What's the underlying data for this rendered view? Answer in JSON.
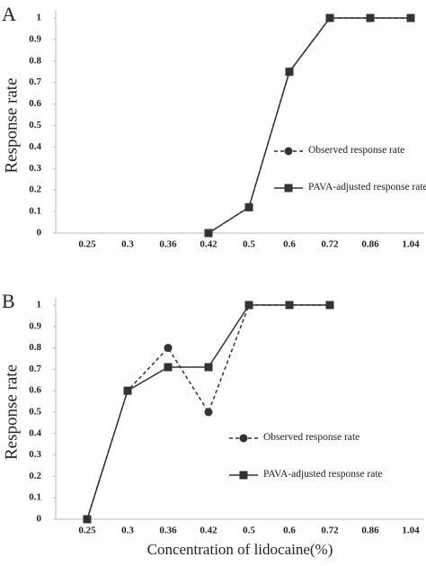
{
  "chart_data": [
    {
      "type": "line",
      "panel": "A",
      "y_label": "Response rate",
      "categories": [
        "0.25",
        "0.3",
        "0.36",
        "0.42",
        "0.5",
        "0.6",
        "0.72",
        "0.86",
        "1.04"
      ],
      "ylim": [
        0,
        1
      ],
      "yticks": [
        0,
        0.1,
        0.2,
        0.3,
        0.4,
        0.5,
        0.6,
        0.7,
        0.8,
        0.9,
        1
      ],
      "legend_position": "center right",
      "series": [
        {
          "name": "Observed response rate",
          "color": "#333333",
          "dashed": true,
          "marker": "circle",
          "values": [
            null,
            null,
            null,
            0,
            0.12,
            0.75,
            1,
            1,
            1
          ]
        },
        {
          "name": "PAVA-adjusted response rate",
          "color": "#333333",
          "dashed": false,
          "marker": "square",
          "values": [
            null,
            null,
            null,
            0,
            0.12,
            0.75,
            1,
            1,
            1
          ]
        }
      ]
    },
    {
      "type": "line",
      "panel": "B",
      "y_label": "Response rate",
      "x_label": "Concentration of lidocaine(%)",
      "categories": [
        "0.25",
        "0.3",
        "0.36",
        "0.42",
        "0.5",
        "0.6",
        "0.72",
        "0.86",
        "1.04"
      ],
      "ylim": [
        0,
        1
      ],
      "yticks": [
        0,
        0.1,
        0.2,
        0.3,
        0.4,
        0.5,
        0.6,
        0.7,
        0.8,
        0.9,
        1
      ],
      "legend_position": "lower center",
      "series": [
        {
          "name": "Observed response rate",
          "color": "#333333",
          "dashed": true,
          "marker": "circle",
          "values": [
            0,
            0.6,
            0.8,
            0.5,
            1,
            1,
            1,
            null,
            null
          ]
        },
        {
          "name": "PAVA-adjusted response rate",
          "color": "#333333",
          "dashed": false,
          "marker": "square",
          "values": [
            0,
            0.6,
            0.71,
            0.71,
            1,
            1,
            1,
            null,
            null
          ]
        }
      ]
    }
  ]
}
